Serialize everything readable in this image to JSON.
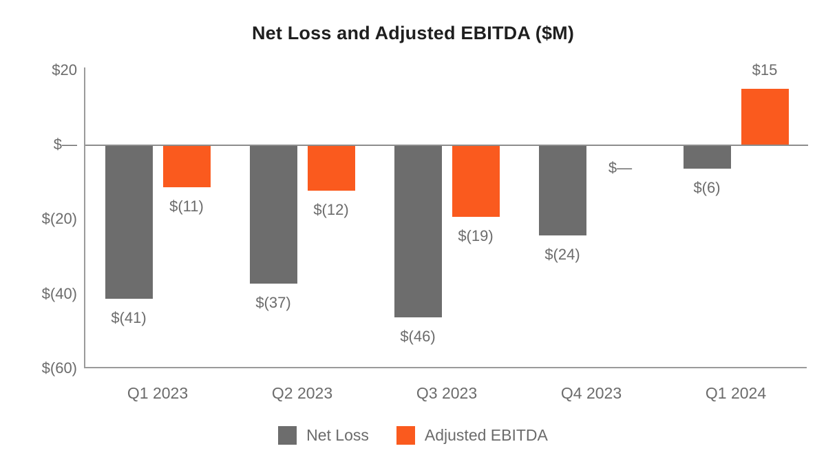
{
  "chart_data": {
    "type": "bar",
    "title": "Net Loss and Adjusted EBITDA ($M)",
    "categories": [
      "Q1 2023",
      "Q2 2023",
      "Q3 2023",
      "Q4 2023",
      "Q1 2024"
    ],
    "series": [
      {
        "name": "Net Loss",
        "color": "#6D6D6D",
        "values": [
          -41,
          -37,
          -46,
          -24,
          -6
        ],
        "labels": [
          "$(41)",
          "$(37)",
          "$(46)",
          "$(24)",
          "$(6)"
        ]
      },
      {
        "name": "Adjusted EBITDA",
        "color": "#FA5A1E",
        "values": [
          -11,
          -12,
          -19,
          0,
          15
        ],
        "labels": [
          "$(11)",
          "$(12)",
          "$(19)",
          "$—",
          "$15"
        ]
      }
    ],
    "y_axis": {
      "min": -60,
      "max": 20,
      "ticks": [
        {
          "value": 20,
          "label": "$20"
        },
        {
          "value": 0,
          "label": "$—"
        },
        {
          "value": -20,
          "label": "$(20)"
        },
        {
          "value": -40,
          "label": "$(40)"
        },
        {
          "value": -60,
          "label": "$(60)"
        }
      ]
    },
    "legend": [
      {
        "label": "Net Loss",
        "color": "#6D6D6D"
      },
      {
        "label": "Adjusted EBITDA",
        "color": "#FA5A1E"
      }
    ],
    "grid": false,
    "legend_position": "bottom",
    "colors": {
      "axis": "#9a9a9a",
      "zero_line": "#8c8c8c",
      "text": "#6b6b6b",
      "title": "#1f1f1f"
    }
  }
}
